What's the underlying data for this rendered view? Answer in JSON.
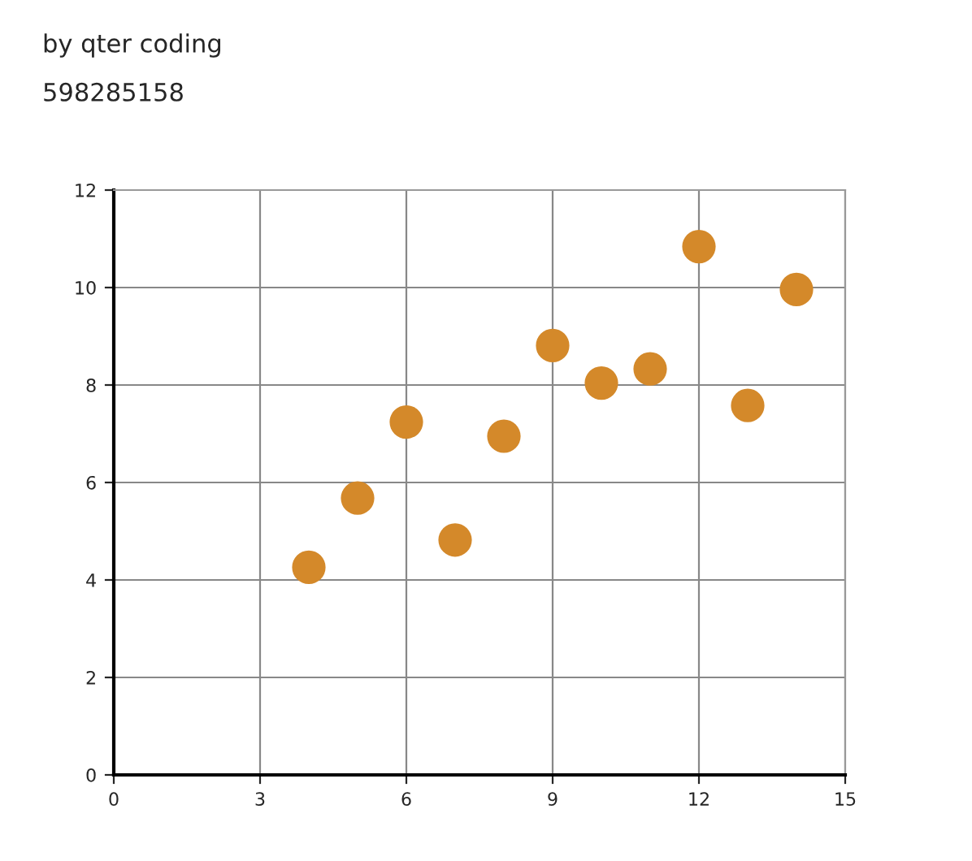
{
  "chart_data": {
    "type": "scatter",
    "annotations": [
      "by qter coding",
      "598285158"
    ],
    "x": [
      4,
      5,
      6,
      7,
      8,
      9,
      10,
      11,
      12,
      13,
      14
    ],
    "series": [
      {
        "color": "#d4892a",
        "values": [
          4.26,
          5.68,
          7.24,
          4.82,
          6.95,
          8.81,
          8.04,
          8.33,
          10.84,
          7.58,
          9.96
        ]
      }
    ],
    "xlim": [
      0,
      15
    ],
    "xticks": [
      0,
      3,
      6,
      9,
      12,
      15
    ],
    "ylim": [
      0,
      12
    ],
    "yticks": [
      0,
      2,
      4,
      6,
      8,
      10,
      12
    ],
    "grid": true,
    "marker": "circle"
  }
}
